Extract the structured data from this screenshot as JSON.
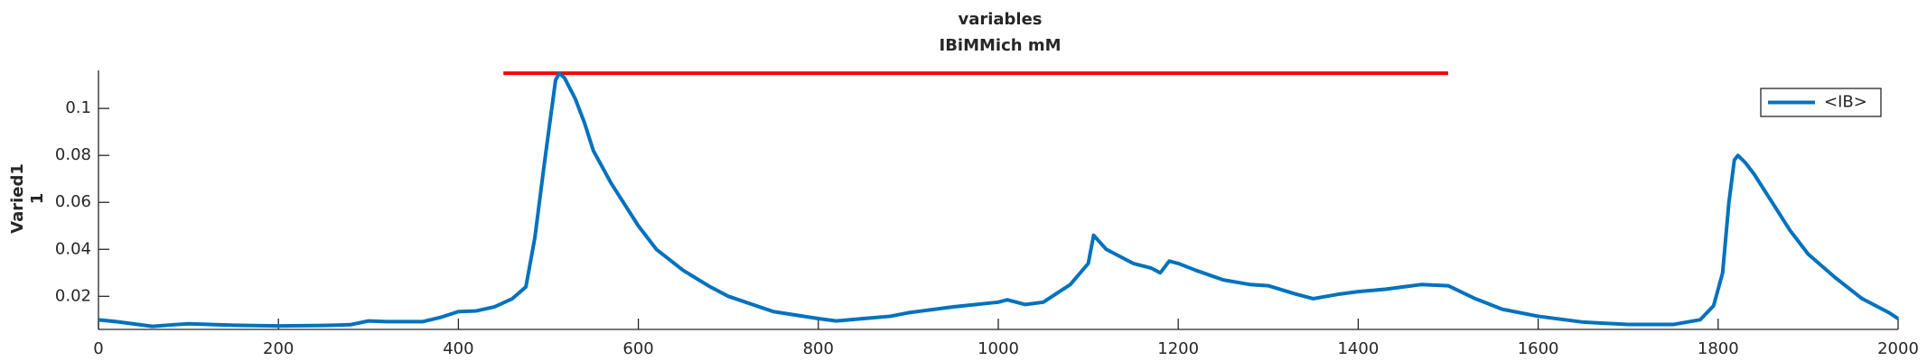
{
  "chart_data": {
    "type": "line",
    "title": [
      "variables",
      "IBiMMich mM"
    ],
    "ylabel": [
      "Varied1",
      "1"
    ],
    "x": [
      0,
      20,
      40,
      60,
      80,
      100,
      150,
      200,
      250,
      280,
      300,
      320,
      360,
      380,
      400,
      420,
      440,
      460,
      475,
      485,
      495,
      502,
      508,
      512,
      518,
      530,
      540,
      550,
      570,
      600,
      620,
      650,
      680,
      700,
      750,
      800,
      820,
      850,
      880,
      900,
      950,
      1000,
      1010,
      1030,
      1050,
      1080,
      1100,
      1106,
      1120,
      1150,
      1170,
      1180,
      1190,
      1200,
      1220,
      1250,
      1280,
      1300,
      1330,
      1350,
      1380,
      1400,
      1430,
      1450,
      1470,
      1500,
      1530,
      1560,
      1600,
      1650,
      1700,
      1750,
      1780,
      1795,
      1805,
      1812,
      1818,
      1822,
      1830,
      1840,
      1860,
      1880,
      1900,
      1930,
      1960,
      1990,
      2000
    ],
    "series": [
      {
        "name": "<IB>",
        "color": "#0072bd",
        "values": [
          0.01,
          0.0092,
          0.0082,
          0.0072,
          0.0078,
          0.0083,
          0.0077,
          0.0074,
          0.0076,
          0.0079,
          0.0095,
          0.0092,
          0.0092,
          0.011,
          0.0135,
          0.0138,
          0.0155,
          0.019,
          0.024,
          0.045,
          0.075,
          0.095,
          0.112,
          0.115,
          0.113,
          0.104,
          0.094,
          0.082,
          0.068,
          0.05,
          0.04,
          0.031,
          0.024,
          0.02,
          0.0135,
          0.0105,
          0.0095,
          0.0105,
          0.0115,
          0.013,
          0.0155,
          0.0175,
          0.0185,
          0.0165,
          0.0175,
          0.025,
          0.034,
          0.046,
          0.04,
          0.034,
          0.032,
          0.03,
          0.035,
          0.034,
          0.031,
          0.027,
          0.025,
          0.0245,
          0.021,
          0.019,
          0.021,
          0.022,
          0.023,
          0.024,
          0.025,
          0.0245,
          0.019,
          0.0145,
          0.0115,
          0.009,
          0.008,
          0.008,
          0.01,
          0.016,
          0.03,
          0.06,
          0.078,
          0.08,
          0.077,
          0.072,
          0.06,
          0.048,
          0.038,
          0.028,
          0.019,
          0.013,
          0.0105
        ]
      }
    ],
    "reference_line": {
      "x": [
        450,
        1500
      ],
      "y": [
        0.115,
        0.115
      ],
      "color": "#ff0000"
    },
    "xlim": [
      0,
      2000
    ],
    "xticks": [
      0,
      200,
      400,
      600,
      800,
      1000,
      1200,
      1400,
      1600,
      1800,
      2000
    ],
    "ylim": [
      0.0059,
      0.1162
    ],
    "yticks": [
      0.02,
      0.04,
      0.06,
      0.08,
      0.1
    ],
    "legend": "upper right"
  }
}
